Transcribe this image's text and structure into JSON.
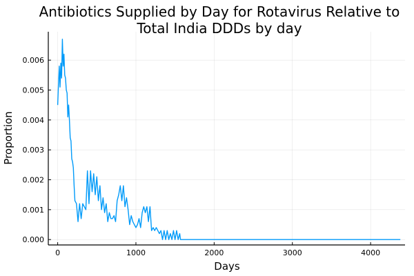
{
  "chart_data": {
    "type": "line",
    "title_lines": [
      "Antibiotics Supplied by Day for Rotavirus Relative to",
      "Total India DDDs by day"
    ],
    "xlabel": "Days",
    "ylabel": "Proportion",
    "xlim": [
      -120,
      4440
    ],
    "ylim": [
      -0.00018,
      0.00695
    ],
    "xticks": [
      0,
      1000,
      2000,
      3000,
      4000
    ],
    "xtick_labels": [
      "0",
      "1000",
      "2000",
      "3000",
      "4000"
    ],
    "yticks": [
      0,
      0.001,
      0.002,
      0.003,
      0.004,
      0.005,
      0.006
    ],
    "ytick_labels": [
      "0.000",
      "0.001",
      "0.002",
      "0.003",
      "0.004",
      "0.005",
      "0.006"
    ],
    "grid": true,
    "legend": "none",
    "series": [
      {
        "color": "#009af9",
        "x": [
          0,
          10,
          20,
          30,
          40,
          50,
          60,
          70,
          80,
          90,
          100,
          110,
          120,
          130,
          140,
          150,
          160,
          170,
          180,
          190,
          200,
          210,
          220,
          240,
          260,
          280,
          300,
          320,
          340,
          360,
          380,
          400,
          420,
          440,
          460,
          480,
          500,
          520,
          540,
          560,
          580,
          600,
          620,
          640,
          660,
          680,
          700,
          720,
          740,
          760,
          780,
          800,
          820,
          840,
          860,
          880,
          900,
          920,
          940,
          960,
          980,
          1000,
          1020,
          1040,
          1060,
          1080,
          1100,
          1120,
          1140,
          1160,
          1180,
          1200,
          1220,
          1240,
          1260,
          1280,
          1300,
          1320,
          1340,
          1360,
          1380,
          1400,
          1420,
          1440,
          1460,
          1480,
          1500,
          1520,
          1540,
          1560,
          1570,
          1600,
          2000,
          3000,
          4000,
          4380
        ],
        "y": [
          0.0045,
          0.0052,
          0.0058,
          0.0051,
          0.0059,
          0.0054,
          0.0067,
          0.0058,
          0.0062,
          0.0055,
          0.0054,
          0.005,
          0.0049,
          0.0041,
          0.0045,
          0.004,
          0.0034,
          0.0033,
          0.0027,
          0.0026,
          0.0024,
          0.0018,
          0.0013,
          0.0012,
          0.0006,
          0.0012,
          0.0007,
          0.0012,
          0.0011,
          0.001,
          0.0023,
          0.0012,
          0.0023,
          0.0016,
          0.0022,
          0.0015,
          0.0021,
          0.0013,
          0.0018,
          0.001,
          0.0014,
          0.0009,
          0.0012,
          0.0006,
          0.0009,
          0.0007,
          0.0007,
          0.0008,
          0.0006,
          0.0013,
          0.0015,
          0.0018,
          0.0013,
          0.0018,
          0.0011,
          0.0014,
          0.001,
          0.0005,
          0.0008,
          0.0006,
          0.0005,
          0.0004,
          0.0005,
          0.0007,
          0.0004,
          0.0009,
          0.0011,
          0.0009,
          0.0011,
          0.0006,
          0.0011,
          0.0003,
          0.0004,
          0.0003,
          0.0004,
          0.0003,
          0.0002,
          0.0003,
          0.0,
          0.0003,
          0.0,
          0.0003,
          0.0,
          0.0002,
          0.0,
          0.0003,
          0.0,
          0.0003,
          0.0,
          0.0002,
          0.0,
          0.0,
          0.0,
          0.0,
          0.0,
          0.0
        ]
      }
    ]
  }
}
